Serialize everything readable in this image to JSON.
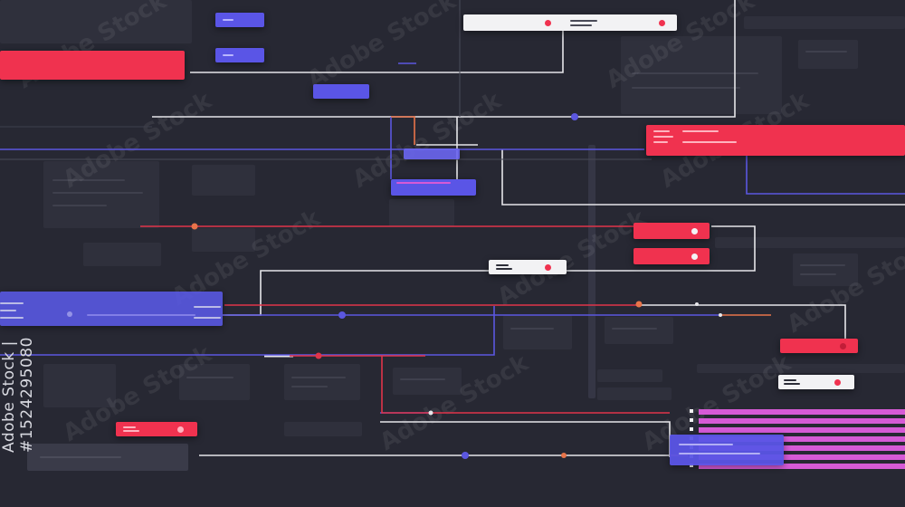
{
  "watermark": {
    "id_text": "Adobe Stock | #1524295080",
    "logo_text": "Adobe Stock"
  },
  "colors": {
    "background": "#272833",
    "panel": "#2f303c",
    "red": "#f0324f",
    "blue": "#5a55e6",
    "white": "#f2f2f4",
    "magenta": "#d65ad6",
    "orange": "#e8744a",
    "wire_white": "#e6e6ea",
    "wire_blue": "#5b57e0",
    "wire_red": "#e0344a"
  },
  "icons": [
    "watermark-logo"
  ]
}
